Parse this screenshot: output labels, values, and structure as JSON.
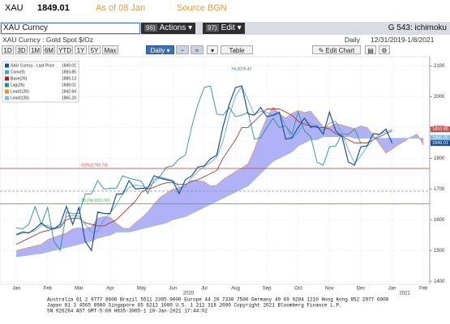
{
  "header": {
    "ticker": "XAU",
    "price": 1849.01,
    "as_of": "As of 08 Jan",
    "source": "Source BGN"
  },
  "toolbar": {
    "security": "XAU Curncy",
    "actions_num": "96)",
    "actions": "Actions",
    "edit_num": "97)",
    "edit": "Edit",
    "function": "G 543: ichimoku"
  },
  "subheader": {
    "description": "XAU Curncy : Gold Spot  $/Oz",
    "frequency": "Daily",
    "range": "12/31/2019-1/8/2021"
  },
  "controls": {
    "ranges": [
      "1D",
      "3D",
      "1M",
      "6M",
      "YTD",
      "1Y",
      "5Y",
      "Max"
    ],
    "frequency": "Daily",
    "table": "Table",
    "edit_chart": "Edit Chart"
  },
  "chart_data": {
    "type": "ichimoku",
    "xlim": [
      -2.6,
      66
    ],
    "ylim": [
      1390,
      2130
    ],
    "xticks": [
      {
        "value": 0,
        "label": "Jan"
      },
      {
        "value": 5,
        "label": "Feb"
      },
      {
        "value": 10,
        "label": "Mar"
      },
      {
        "value": 15,
        "label": "Apr"
      },
      {
        "value": 20,
        "label": "May"
      },
      {
        "value": 25,
        "label": "Jun"
      },
      {
        "value": 30,
        "label": "Jul"
      },
      {
        "value": 35,
        "label": "Aug"
      },
      {
        "value": 40,
        "label": "Sep"
      },
      {
        "value": 45,
        "label": "Oct"
      },
      {
        "value": 50,
        "label": "Nov"
      },
      {
        "value": 55,
        "label": "Dec"
      },
      {
        "value": 60,
        "label": "Jan"
      },
      {
        "value": 65,
        "label": "Feb"
      }
    ],
    "year_labels": [
      {
        "value": 27.5,
        "label": "2020"
      },
      {
        "value": 62,
        "label": "2021"
      }
    ],
    "yticks": [
      1400,
      1500,
      1600,
      1700,
      1800,
      1900,
      2000,
      2100
    ],
    "grid": true,
    "cloud_color": "#a3a3f7",
    "series": [
      {
        "name": "XAU Curncy - Last Price",
        "legend_value": "1849.01",
        "color": "#1d4f91",
        "values": [
          1552,
          1560,
          1557,
          1571,
          1589,
          1574,
          1570,
          1585,
          1643,
          1585,
          1640,
          1530,
          1500,
          1625,
          1620,
          1620,
          1683,
          1684,
          1727,
          1700,
          1702,
          1703,
          1743,
          1735,
          1730,
          1725,
          1685,
          1730,
          1743,
          1771,
          1775,
          1798,
          1810,
          1902,
          1975,
          2030,
          2035,
          1944,
          1940,
          1965,
          1935,
          1940,
          1950,
          1862,
          1866,
          1900,
          1930,
          1900,
          1905,
          1878,
          1950,
          1889,
          1870,
          1788,
          1777,
          1837,
          1840,
          1880,
          1877,
          1895,
          1849.01
        ]
      },
      {
        "name": "Conv(9)",
        "legend_value": "1893.85",
        "color": "#4aa3df",
        "values": [
          1550,
          1556,
          1559,
          1564,
          1580,
          1582,
          1572,
          1578,
          1610,
          1614,
          1612,
          1585,
          1560,
          1562,
          1600,
          1622,
          1650,
          1684,
          1705,
          1713,
          1710,
          1705,
          1722,
          1739,
          1733,
          1728,
          1705,
          1708,
          1737,
          1757,
          1773,
          1786,
          1804,
          1856,
          1938,
          2003,
          2032,
          1990,
          1942,
          1952,
          1950,
          1938,
          1945,
          1906,
          1864,
          1883,
          1915,
          1915,
          1903,
          1891,
          1914,
          1920,
          1880,
          1829,
          1782,
          1807,
          1838,
          1860,
          1878,
          1886,
          1893.85
        ]
      },
      {
        "name": "Base(26)",
        "legend_value": "1889.13",
        "color": "#a3201f",
        "values": [
          1520,
          1530,
          1540,
          1550,
          1560,
          1565,
          1570,
          1575,
          1600,
          1605,
          1605,
          1590,
          1585,
          1580,
          1580,
          1590,
          1600,
          1620,
          1640,
          1660,
          1690,
          1700,
          1705,
          1715,
          1720,
          1720,
          1715,
          1715,
          1725,
          1730,
          1740,
          1750,
          1760,
          1800,
          1830,
          1860,
          1900,
          1900,
          1920,
          1940,
          1960,
          1960,
          1960,
          1950,
          1940,
          1920,
          1910,
          1905,
          1900,
          1900,
          1895,
          1880,
          1870,
          1860,
          1850,
          1850,
          1850,
          1860,
          1870,
          1880,
          1889.13
        ]
      },
      {
        "name": "Lag(26)",
        "legend_value": "1849.01",
        "color": "#2a8f8f",
        "values": [
          1574,
          1570,
          1585,
          1643,
          1585,
          1640,
          1530,
          1500,
          1625,
          1620,
          1620,
          1683,
          1684,
          1727,
          1700,
          1702,
          1703,
          1743,
          1735,
          1730,
          1725,
          1685,
          1730,
          1743,
          1771,
          1775,
          1798,
          1810,
          1902,
          1975,
          2030,
          2035,
          1944,
          1940,
          1965,
          1935,
          1940,
          1950,
          1862,
          1866,
          1900,
          1930,
          1900,
          1905,
          1878,
          1950,
          1889,
          1870,
          1788,
          1777,
          1837,
          1840,
          1880,
          1877,
          1895,
          1849.01,
          null,
          null,
          null,
          null,
          null
        ]
      },
      {
        "name": "Lead1(26)",
        "legend_value": "1842.84",
        "color": "#e8902a",
        "values": [
          1500,
          1505,
          1510,
          1515,
          1520,
          1535,
          1543,
          1550,
          1557,
          1570,
          1574,
          1571,
          1577,
          1605,
          1610,
          1608,
          1588,
          1573,
          1571,
          1590,
          1606,
          1625,
          1652,
          1673,
          1687,
          1700,
          1703,
          1714,
          1727,
          1727,
          1724,
          1710,
          1712,
          1731,
          1744,
          1757,
          1768,
          1782,
          1828,
          1884,
          1932,
          1966,
          1945,
          1931,
          1946,
          1955,
          1949,
          1953,
          1928,
          1902,
          1902,
          1913,
          1908,
          1902,
          1896,
          1905,
          1900,
          1875,
          1845,
          1816,
          1829,
          1844,
          1855,
          1869,
          1878,
          1842.84
        ]
      },
      {
        "name": "Lead2(26)",
        "legend_value": "1865.20",
        "color": "#7fb7e6",
        "values": [
          1480,
          1482,
          1485,
          1488,
          1490,
          1495,
          1500,
          1505,
          1510,
          1515,
          1520,
          1525,
          1530,
          1540,
          1545,
          1550,
          1560,
          1560,
          1560,
          1565,
          1570,
          1575,
          1580,
          1585,
          1590,
          1600,
          1605,
          1610,
          1620,
          1630,
          1640,
          1650,
          1660,
          1670,
          1680,
          1690,
          1700,
          1710,
          1730,
          1750,
          1770,
          1790,
          1800,
          1810,
          1820,
          1840,
          1850,
          1860,
          1860,
          1870,
          1870,
          1870,
          1870,
          1870,
          1865,
          1865,
          1865,
          1865,
          1865,
          1865,
          1865,
          1865,
          1865,
          1865,
          1865,
          1865.2
        ]
      }
    ],
    "reference_lines": [
      {
        "label": "0.0%(1766.74)",
        "value": 1766.74,
        "color": "#d04848"
      },
      {
        "value": 1693,
        "color": "#999999"
      },
      {
        "label": "38.2%(1651.60)",
        "value": 1651.6,
        "color": "#3cbf3c"
      }
    ],
    "annotations": [
      {
        "label": "Hi 2075.47",
        "value": 2075.47,
        "x": 36
      }
    ],
    "price_tags": [
      {
        "value": 1893.85,
        "color": "#c0504d"
      },
      {
        "value": 1866.26,
        "color": "#7fb7e6"
      },
      {
        "value": 1849.01,
        "color": "#1d4f91"
      }
    ]
  },
  "footer": [
    "Australia 61 2 9777 8600 Brazil 5511 2395 9000 Europe 44 20 7330 7500 Germany 49 69 9204 1210 Hong Kong 852 2977 6000",
    "Japan 81 3 4565 8900      Singapore 65 6212 1000      U.S. 1 212 318 2000      Copyright 2021 Bloomberg Finance L.P.",
    "SN 926264 AST  GMT-5:00 H835-3065-1 10-Jan-2021 17:44:02"
  ]
}
